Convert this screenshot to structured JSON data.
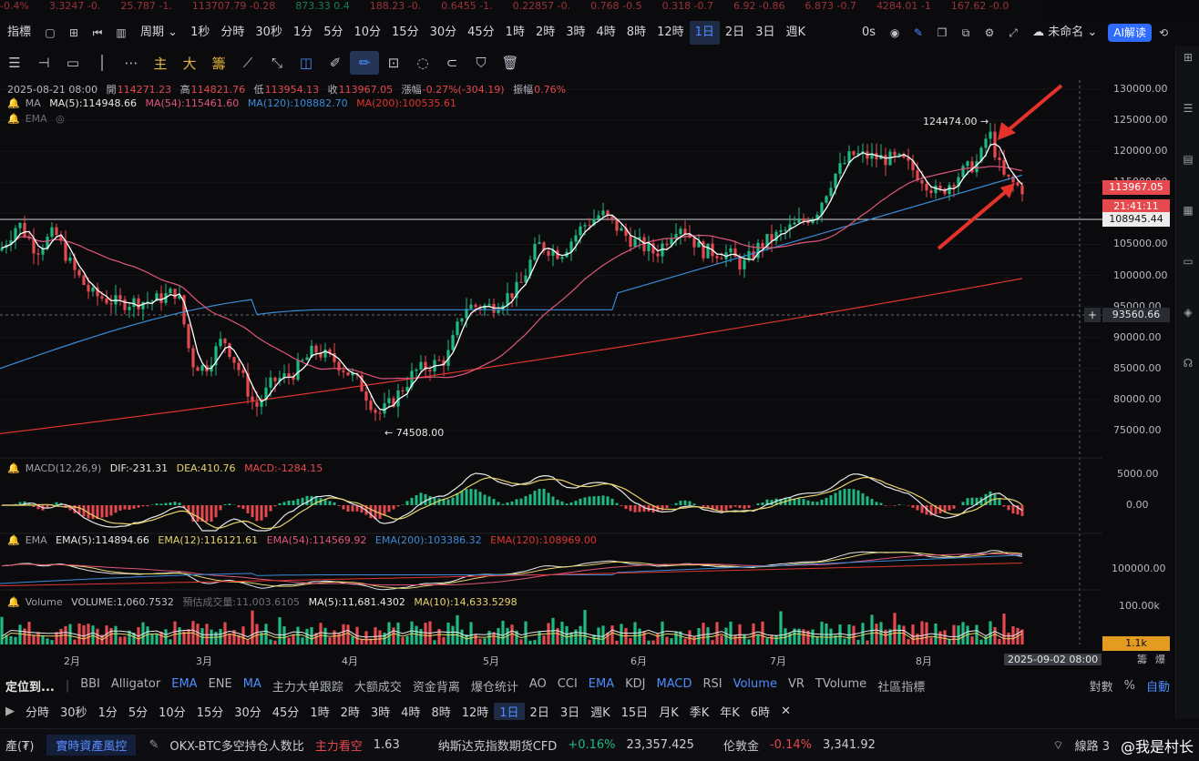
{
  "ticker": [
    "-0.4%",
    "3.3247 -0.",
    "25.787 -1.",
    "113707.79 -0.28",
    "873.33 0.4",
    "188.23 -0.",
    "0.6455 -1.",
    "0.22857 -0.",
    "0.768 -0.5",
    "0.318 -0.7",
    "6.92 -0.86",
    "6.873 -0.7",
    "4284.01 -1",
    "167.62 -0.0"
  ],
  "toolbar": {
    "indicators": "指標",
    "period": "周期",
    "timeframes": [
      "1秒",
      "分時",
      "30秒",
      "1分",
      "5分",
      "10分",
      "15分",
      "30分",
      "45分",
      "1時",
      "2時",
      "3時",
      "4時",
      "8時",
      "12時",
      "1日",
      "2日",
      "3日",
      "週K"
    ],
    "active_timeframe": "1日",
    "timer": "0s",
    "layout_name": "未命名",
    "ai_button": "AI解读"
  },
  "drawing_tools": {
    "main": "主",
    "big": "大",
    "chips": "籌"
  },
  "ohlc": {
    "date": "2025-08-21 08:00",
    "open_label": "開",
    "open": "114271.23",
    "high_label": "高",
    "high": "114821.76",
    "low_label": "低",
    "low": "113954.13",
    "close_label": "收",
    "close": "113967.05",
    "change_label": "漲幅",
    "change": "-0.27%(-304.19)",
    "amp_label": "振幅",
    "amp": "0.76%"
  },
  "ma_line": {
    "name": "MA",
    "ma5": "MA(5):114948.66",
    "ma54": "MA(54):115461.60",
    "ma120": "MA(120):108882.70",
    "ma200": "MA(200):100535.61"
  },
  "ema_label": "EMA",
  "price_axis": [
    "130000.00",
    "125000.00",
    "120000.00",
    "115000.00",
    "110000.00",
    "105000.00",
    "100000.00",
    "95000.00",
    "90000.00",
    "85000.00",
    "80000.00",
    "75000.00"
  ],
  "annotations": {
    "high": "124474.00",
    "low": "74508.00"
  },
  "price_tags": {
    "last": "113967.05",
    "countdown": "21:41:11",
    "hline": "108945.44",
    "crosshair": "93560.66"
  },
  "macd": {
    "title": "MACD(12,26,9)",
    "dif": "DIF:-231.31",
    "dea": "DEA:410.76",
    "macd": "MACD:-1284.15",
    "axis": [
      "5000.00",
      "0.00"
    ]
  },
  "ema_panel": {
    "title": "EMA",
    "e5": "EMA(5):114894.66",
    "e12": "EMA(12):116121.61",
    "e54": "EMA(54):114569.92",
    "e200": "EMA(200):103386.32",
    "e120": "EMA(120):108969.00",
    "axis": "100000.00"
  },
  "volume": {
    "title": "Volume",
    "vol": "VOLUME:1,060.7532",
    "est": "預估成交量:11,003.6105",
    "ma5": "MA(5):11,681.4302",
    "ma10": "MA(10):14,633.5298",
    "axis": "100.00k",
    "tag": "1.1k"
  },
  "x_axis": [
    "2月",
    "3月",
    "4月",
    "5月",
    "6月",
    "7月",
    "8月"
  ],
  "x_cursor": "2025-09-02 08:00",
  "corner_labels": [
    "籌",
    "爆"
  ],
  "indicator_bar": {
    "locate": "定位到...",
    "items": [
      "BBI",
      "Alligator",
      "EMA",
      "ENE",
      "MA",
      "主力大单跟踪",
      "大额成交",
      "资金背离",
      "爆仓统计",
      "AO",
      "CCI",
      "EMA",
      "KDJ",
      "MACD",
      "RSI",
      "Volume",
      "VR",
      "TVolume",
      "社區指標"
    ],
    "on": [
      "EMA",
      "MA",
      "MACD",
      "Volume"
    ],
    "right": [
      "對數",
      "%",
      "自動"
    ]
  },
  "tf_bar": [
    "分時",
    "30秒",
    "1分",
    "5分",
    "10分",
    "15分",
    "30分",
    "45分",
    "1時",
    "2時",
    "3時",
    "4時",
    "8時",
    "12時",
    "1日",
    "2日",
    "3日",
    "週K",
    "15日",
    "月K",
    "季K",
    "年K",
    "6時"
  ],
  "status": {
    "asset": "產(₮)",
    "risk": "實時資產風控",
    "okx": "OKX-BTC多空持仓人数比",
    "okx_side": "主力看空",
    "okx_val": "1.63",
    "nasdaq": "纳斯达克指数期货CFD",
    "nasdaq_pct": "+0.16%",
    "nasdaq_val": "23,357.425",
    "gold": "伦敦金",
    "gold_pct": "-0.14%",
    "gold_val": "3,341.92",
    "lines": "線路 3",
    "watermark": "@我是村长"
  },
  "colors": {
    "up": "#1fb981",
    "down": "#e5494d",
    "ma5": "#ffffff",
    "ma54": "#e0567a",
    "ma120": "#3a8bd6",
    "ma200": "#e0342f",
    "accent": "#2f6bff"
  }
}
